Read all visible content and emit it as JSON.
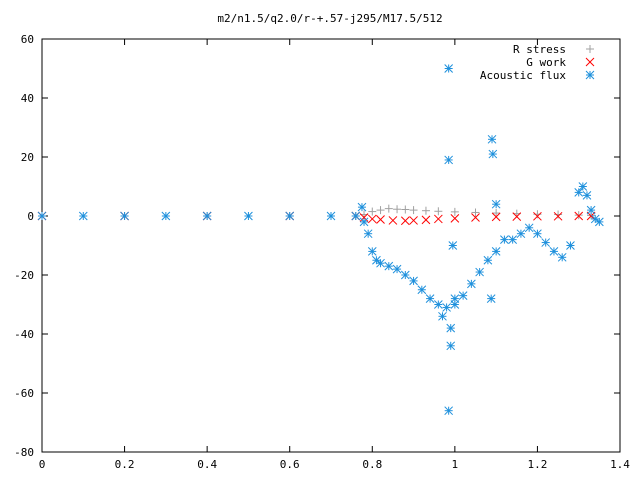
{
  "chart_data": {
    "type": "scatter",
    "title": "m2/n1.5/q2.0/r-+.57-j295/M17.5/512",
    "xlabel": "",
    "ylabel": "",
    "xlim": [
      0,
      1.4
    ],
    "ylim": [
      -80,
      60
    ],
    "grid": false,
    "legend_position": "top-right",
    "x_ticks": [
      0,
      0.2,
      0.4,
      0.6,
      0.8,
      1,
      1.2,
      1.4
    ],
    "x_tick_labels": [
      "0",
      "0.2",
      "0.4",
      "0.6",
      "0.8",
      "1",
      "1.2",
      "1.4"
    ],
    "y_ticks": [
      -80,
      -60,
      -40,
      -20,
      0,
      20,
      40,
      60
    ],
    "y_tick_labels": [
      "-80",
      "-60",
      "-40",
      "-20",
      "0",
      "20",
      "40",
      "60"
    ],
    "series": [
      {
        "name": "R stress",
        "marker": "plus",
        "color": "#a0a0a0",
        "x": [
          0.0,
          0.2,
          0.4,
          0.6,
          0.76,
          0.78,
          0.8,
          0.82,
          0.84,
          0.86,
          0.88,
          0.9,
          0.93,
          0.96,
          1.0,
          1.05,
          1.1,
          1.15,
          1.2,
          1.25,
          1.3,
          1.33
        ],
        "y": [
          0,
          0,
          0,
          0,
          0,
          0.5,
          1.5,
          2.0,
          2.5,
          2.3,
          2.2,
          2.0,
          1.8,
          1.6,
          1.4,
          1.2,
          1.0,
          0.8,
          0.6,
          0.5,
          0.3,
          0.2
        ]
      },
      {
        "name": "G work",
        "marker": "cross",
        "color": "#ff0000",
        "x": [
          0.0,
          0.2,
          0.4,
          0.6,
          0.76,
          0.78,
          0.8,
          0.82,
          0.85,
          0.88,
          0.9,
          0.93,
          0.96,
          1.0,
          1.05,
          1.1,
          1.15,
          1.2,
          1.25,
          1.3,
          1.33
        ],
        "y": [
          0,
          0,
          0,
          0,
          0,
          -0.5,
          -1.0,
          -1.2,
          -1.5,
          -1.6,
          -1.5,
          -1.3,
          -1.0,
          -0.8,
          -0.5,
          -0.3,
          -0.2,
          -0.1,
          -0.1,
          0,
          0
        ]
      },
      {
        "name": "Acoustic flux",
        "marker": "star",
        "color": "#1e90dc",
        "x": [
          0.0,
          0.1,
          0.2,
          0.3,
          0.4,
          0.5,
          0.6,
          0.7,
          0.76,
          0.775,
          0.78,
          0.79,
          0.8,
          0.81,
          0.82,
          0.84,
          0.86,
          0.88,
          0.9,
          0.92,
          0.94,
          0.96,
          0.98,
          1.0,
          1.02,
          1.04,
          1.06,
          1.08,
          1.1,
          1.12,
          1.14,
          1.16,
          1.18,
          1.2,
          1.22,
          1.24,
          1.26,
          1.28,
          1.3,
          1.31,
          1.32,
          1.33,
          1.34,
          1.35,
          0.985,
          0.985,
          0.99,
          0.99,
          0.995,
          1.0,
          1.09,
          1.092,
          1.1,
          1.088,
          0.97,
          0.985
        ],
        "y": [
          0,
          0,
          0,
          0,
          0,
          0,
          0,
          0,
          0,
          3,
          -2,
          -6,
          -12,
          -15,
          -16,
          -17,
          -18,
          -20,
          -22,
          -25,
          -28,
          -30,
          -31,
          -30,
          -27,
          -23,
          -19,
          -15,
          -12,
          -8,
          -8,
          -6,
          -4,
          -6,
          -9,
          -12,
          -14,
          -10,
          8,
          10,
          7,
          2,
          -1,
          -2,
          50,
          19,
          -38,
          -44,
          -10,
          -28,
          26,
          21,
          4,
          -28,
          -34,
          -66
        ]
      }
    ]
  }
}
